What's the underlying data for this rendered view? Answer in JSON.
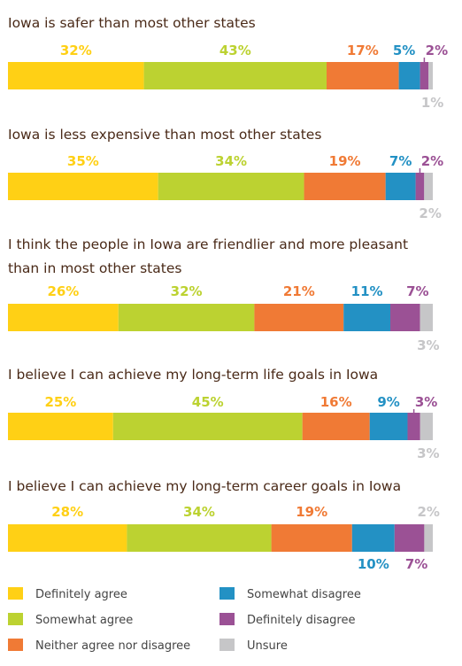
{
  "chart_data": {
    "type": "bar",
    "orientation": "horizontal-stacked-100",
    "legend_position": "bottom",
    "grid": false,
    "categories": [
      {
        "title_lines": [
          "Iowa is safer than most other states"
        ],
        "values": [
          32,
          43,
          17,
          5,
          2,
          1
        ]
      },
      {
        "title_lines": [
          "Iowa is less expensive than most other states"
        ],
        "values": [
          35,
          34,
          19,
          7,
          2,
          2
        ]
      },
      {
        "title_lines": [
          "I think the people in Iowa are friendlier and more pleasant",
          "than in most other states"
        ],
        "values": [
          26,
          32,
          21,
          11,
          7,
          3
        ]
      },
      {
        "title_lines": [
          "I believe I can achieve my long-term life goals in Iowa"
        ],
        "values": [
          25,
          45,
          16,
          9,
          3,
          3
        ]
      },
      {
        "title_lines": [
          "I believe I can achieve my long-term career goals in Iowa"
        ],
        "values": [
          28,
          34,
          19,
          10,
          7,
          2
        ]
      }
    ],
    "series": [
      {
        "name": "Definitely agree",
        "color": "#FFD015"
      },
      {
        "name": "Somewhat agree",
        "color": "#BCD231"
      },
      {
        "name": "Neither agree nor disagree",
        "color": "#F07A35"
      },
      {
        "name": "Somewhat disagree",
        "color": "#2391C4"
      },
      {
        "name": "Definitely disagree",
        "color": "#9B5195"
      },
      {
        "name": "Unsure",
        "color": "#C6C6C8"
      }
    ],
    "value_suffix": "%"
  }
}
